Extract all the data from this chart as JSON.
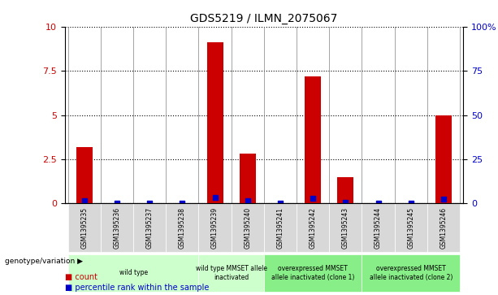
{
  "title": "GDS5219 / ILMN_2075067",
  "samples": [
    "GSM1395235",
    "GSM1395236",
    "GSM1395237",
    "GSM1395238",
    "GSM1395239",
    "GSM1395240",
    "GSM1395241",
    "GSM1395242",
    "GSM1395243",
    "GSM1395244",
    "GSM1395245",
    "GSM1395246"
  ],
  "counts": [
    3.2,
    0,
    0,
    0,
    9.1,
    2.8,
    0,
    7.2,
    1.5,
    0,
    0,
    5.0
  ],
  "percentiles": [
    1.7,
    0,
    0,
    0,
    3.5,
    1.7,
    0,
    3.0,
    0.9,
    0,
    0,
    2.5
  ],
  "ylim_left": [
    0,
    10
  ],
  "ylim_right": [
    0,
    100
  ],
  "yticks_left": [
    0,
    2.5,
    5,
    7.5,
    10
  ],
  "yticks_right": [
    0,
    25,
    50,
    75,
    100
  ],
  "ytick_labels_left": [
    "0",
    "2.5",
    "5",
    "7.5",
    "10"
  ],
  "ytick_labels_right": [
    "0",
    "25",
    "50",
    "75",
    "100%"
  ],
  "bar_color": "#cc0000",
  "dot_color": "#0000cc",
  "groups": [
    {
      "label": "wild type",
      "samples": [
        0,
        1,
        2,
        3
      ],
      "color": "#ccffcc"
    },
    {
      "label": "wild type MMSET allele\ninactivated",
      "samples": [
        4,
        5
      ],
      "color": "#ccffcc"
    },
    {
      "label": "overexpressed MMSET\nallele inactivated (clone 1)",
      "samples": [
        6,
        7,
        8
      ],
      "color": "#88ee88"
    },
    {
      "label": "overexpressed MMSET\nallele inactivated (clone 2)",
      "samples": [
        9,
        10,
        11
      ],
      "color": "#88ee88"
    }
  ],
  "legend_count_label": "count",
  "legend_pct_label": "percentile rank within the sample",
  "genotype_label": "genotype/variation",
  "grid_color": "#000000",
  "axis_bg": "#f0f0f0",
  "plot_bg": "#ffffff",
  "tick_label_color_left": "#cc0000",
  "tick_label_color_right": "#0000cc"
}
